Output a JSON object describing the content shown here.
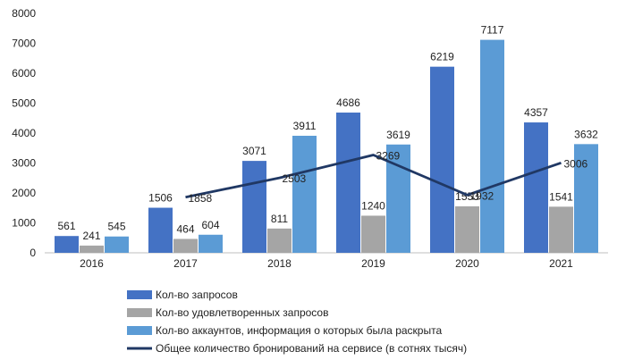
{
  "chart_data": {
    "type": "bar",
    "categories": [
      "2016",
      "2017",
      "2018",
      "2019",
      "2020",
      "2021"
    ],
    "series": [
      {
        "name": "Кол-во запросов",
        "kind": "bar",
        "color": "#4472C4",
        "values": [
          561,
          1506,
          3071,
          4686,
          6219,
          4357
        ]
      },
      {
        "name": "Кол-во удовлетворенных запросов",
        "kind": "bar",
        "color": "#A5A5A5",
        "values": [
          241,
          464,
          811,
          1240,
          1553,
          1541
        ]
      },
      {
        "name": "Кол-во аккаунтов, информация о которых была раскрыта",
        "kind": "bar",
        "color": "#5B9BD5",
        "values": [
          545,
          604,
          3911,
          3619,
          7117,
          3632
        ]
      },
      {
        "name": "Общее количество бронирований на сервисе (в сотнях тысяч)",
        "kind": "line",
        "color": "#203864",
        "values": [
          null,
          1858,
          2503,
          3269,
          1932,
          3006
        ]
      }
    ],
    "yticks": [
      "0",
      "1000",
      "2000",
      "3000",
      "4000",
      "5000",
      "6000",
      "7000",
      "8000"
    ],
    "ylim": [
      0,
      8000
    ],
    "grid": false,
    "legend": "bottom"
  }
}
